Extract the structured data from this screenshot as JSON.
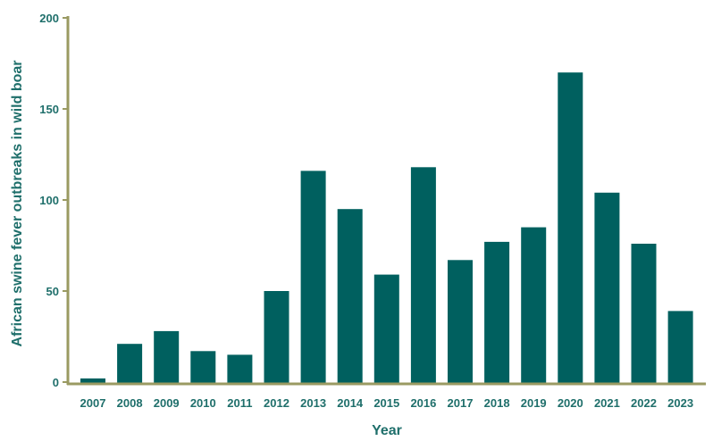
{
  "colors": {
    "bar": "#00605f",
    "axis": "#9a9a62",
    "text": "#1f6f6b"
  },
  "chart_data": {
    "type": "bar",
    "xlabel": "Year",
    "ylabel": "African swine fever outbreaks in wild boar",
    "ylim": [
      0,
      200
    ],
    "yticks": [
      0,
      50,
      100,
      150,
      200
    ],
    "grid": false,
    "categories": [
      "2007",
      "2008",
      "2009",
      "2010",
      "2011",
      "2012",
      "2013",
      "2014",
      "2015",
      "2016",
      "2017",
      "2018",
      "2019",
      "2020",
      "2021",
      "2022",
      "2023"
    ],
    "values": [
      2,
      21,
      28,
      17,
      15,
      50,
      116,
      95,
      59,
      118,
      67,
      77,
      85,
      170,
      104,
      76,
      39
    ]
  }
}
